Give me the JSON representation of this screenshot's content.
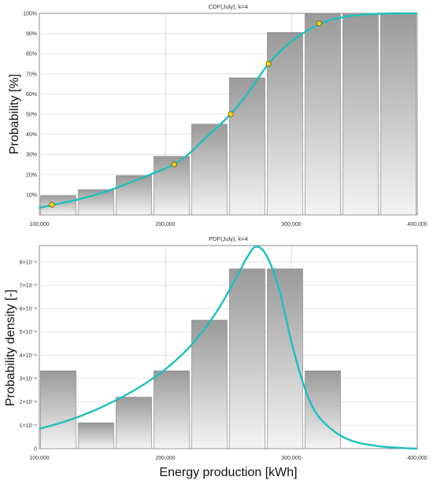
{
  "chart_data": [
    {
      "type": "bar",
      "title": "CDF(July), k=4",
      "xlabel": "",
      "ylabel": "Probability [%]",
      "xlim": [
        100000,
        400000
      ],
      "ylim": [
        0,
        100
      ],
      "x_ticks": [
        100000,
        200000,
        300000,
        400000
      ],
      "x_tick_labels": [
        "100,000",
        "200,000",
        "300,000",
        "400,000"
      ],
      "y_ticks": [
        10,
        20,
        30,
        40,
        50,
        60,
        70,
        80,
        90,
        100
      ],
      "y_tick_labels": [
        "10%",
        "20%",
        "30%",
        "40%",
        "50%",
        "60%",
        "70%",
        "80%",
        "90%",
        "100%"
      ],
      "grid": true,
      "bins": [
        {
          "x0": 100000,
          "x1": 130000,
          "value": 9.5
        },
        {
          "x0": 130000,
          "x1": 160000,
          "value": 12.5
        },
        {
          "x0": 160000,
          "x1": 190000,
          "value": 19.5
        },
        {
          "x0": 190000,
          "x1": 220000,
          "value": 29
        },
        {
          "x0": 220000,
          "x1": 250000,
          "value": 45
        },
        {
          "x0": 250000,
          "x1": 280000,
          "value": 68
        },
        {
          "x0": 280000,
          "x1": 310000,
          "value": 90.5
        },
        {
          "x0": 310000,
          "x1": 340000,
          "value": 100
        },
        {
          "x0": 340000,
          "x1": 370000,
          "value": 100
        },
        {
          "x0": 370000,
          "x1": 400000,
          "value": 100
        }
      ],
      "curve": {
        "x": [
          100000,
          110000,
          130000,
          150000,
          170000,
          190000,
          207000,
          220000,
          235000,
          252000,
          265000,
          282000,
          300000,
          322000,
          340000,
          360000,
          380000,
          400000
        ],
        "y": [
          3.5,
          4.8,
          7.5,
          11,
          15.5,
          20.5,
          25,
          31,
          40,
          50,
          60,
          75,
          86,
          94.5,
          98,
          99.5,
          100,
          100
        ]
      },
      "markers": [
        {
          "x": 110000,
          "y": 5
        },
        {
          "x": 207000,
          "y": 25
        },
        {
          "x": 252000,
          "y": 50
        },
        {
          "x": 282000,
          "y": 75
        },
        {
          "x": 322000,
          "y": 95
        }
      ],
      "colors": {
        "curve": "#1fbfbf",
        "marker": "#f2d21b",
        "bar_top": "#9a9a9a",
        "bar_bottom": "#f4f4f4"
      }
    },
    {
      "type": "bar",
      "title": "PDF(July), k=4",
      "xlabel": "Energy production [kWh]",
      "ylabel": "Probability density [-]",
      "xlim": [
        100000,
        400000
      ],
      "ylim": [
        0,
        8.7
      ],
      "y_unit": "1e-6",
      "x_ticks": [
        100000,
        200000,
        300000,
        400000
      ],
      "x_tick_labels": [
        "100,000",
        "200,000",
        "300,000",
        "400,000"
      ],
      "y_ticks": [
        0,
        1,
        2,
        3,
        4,
        5,
        6,
        7,
        8
      ],
      "y_tick_labels": [
        "0",
        "1×10⁻⁶",
        "2×10⁻⁶",
        "3×10⁻⁶",
        "4×10⁻⁶",
        "5×10⁻⁶",
        "6×10⁻⁶",
        "7×10⁻⁶",
        "8×10⁻⁶"
      ],
      "grid": true,
      "bins": [
        {
          "x0": 100000,
          "x1": 130000,
          "value": 3.33
        },
        {
          "x0": 130000,
          "x1": 160000,
          "value": 1.1
        },
        {
          "x0": 160000,
          "x1": 190000,
          "value": 2.2
        },
        {
          "x0": 190000,
          "x1": 220000,
          "value": 3.33
        },
        {
          "x0": 220000,
          "x1": 250000,
          "value": 5.5
        },
        {
          "x0": 250000,
          "x1": 280000,
          "value": 7.7
        },
        {
          "x0": 280000,
          "x1": 310000,
          "value": 7.7
        },
        {
          "x0": 310000,
          "x1": 340000,
          "value": 3.33
        }
      ],
      "curve": {
        "x": [
          100000,
          120000,
          140000,
          160000,
          180000,
          200000,
          220000,
          240000,
          255000,
          265000,
          272000,
          280000,
          290000,
          300000,
          310000,
          320000,
          335000,
          350000,
          370000,
          390000,
          400000
        ],
        "y": [
          0.85,
          1.15,
          1.55,
          2.05,
          2.65,
          3.4,
          4.4,
          5.8,
          7.2,
          8.2,
          8.65,
          8.3,
          6.9,
          4.6,
          2.7,
          1.5,
          0.7,
          0.3,
          0.1,
          0.02,
          0.0
        ]
      },
      "colors": {
        "curve": "#1fbfbf",
        "bar_top": "#9a9a9a",
        "bar_bottom": "#f4f4f4"
      }
    }
  ]
}
